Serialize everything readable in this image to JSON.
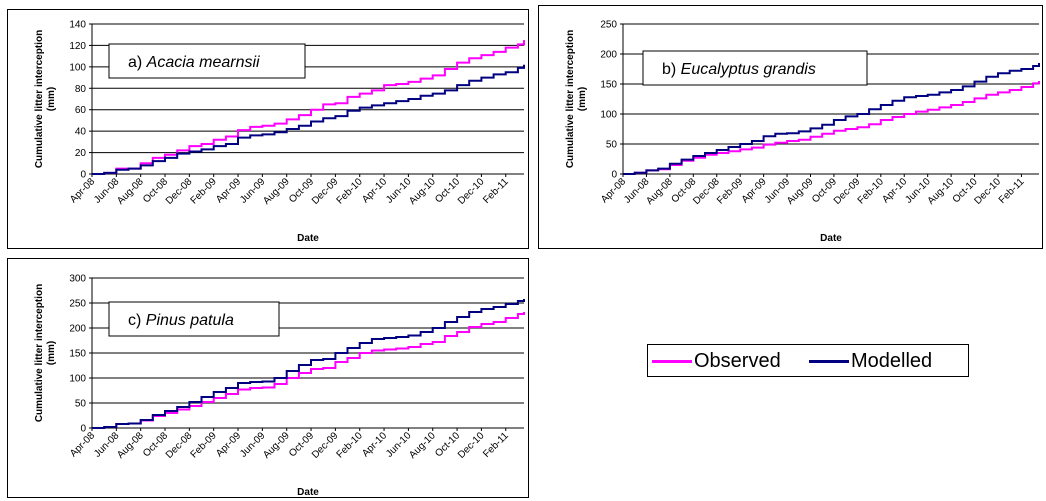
{
  "colors": {
    "observed": "#ff00ff",
    "modelled": "#000080"
  },
  "legend": {
    "position": "right",
    "items": [
      {
        "name": "Observed",
        "color": "#ff00ff"
      },
      {
        "name": "Modelled",
        "color": "#000080"
      }
    ]
  },
  "chart_data": [
    {
      "type": "line",
      "panel_label_prefix": "a)",
      "panel_label_species": "Acacia mearnsii",
      "xlabel": "Date",
      "ylabel_line1": "Cumulative litter interception",
      "ylabel_line2": "(mm)",
      "ylim": [
        0,
        140
      ],
      "yticks": [
        0,
        20,
        40,
        60,
        80,
        100,
        120,
        140
      ],
      "grid": true,
      "x_tick_labels": [
        "Apr-08",
        "Jun-08",
        "Aug-08",
        "Oct-08",
        "Dec-08",
        "Feb-09",
        "Apr-09",
        "Jun-09",
        "Aug-09",
        "Oct-09",
        "Dec-09",
        "Feb-10",
        "Apr-10",
        "Jun-10",
        "Aug-10",
        "Oct-10",
        "Dec-10",
        "Feb-11"
      ],
      "x_range_months": [
        0,
        35.5
      ],
      "series": [
        {
          "name": "Observed",
          "color": "#ff00ff",
          "x": [
            0,
            1,
            2,
            3,
            4,
            5,
            6,
            7,
            8,
            9,
            10,
            11,
            12,
            13,
            14,
            15,
            16,
            17,
            18,
            19,
            20,
            21,
            22,
            23,
            24,
            25,
            26,
            27,
            28,
            29,
            30,
            31,
            32,
            33,
            34,
            35,
            35.5
          ],
          "y": [
            0,
            1,
            5,
            5,
            10,
            15,
            18,
            22,
            26,
            28,
            32,
            35,
            41,
            44,
            45,
            47,
            51,
            55,
            60,
            65,
            66,
            72,
            75,
            78,
            83,
            84,
            86,
            89,
            92,
            98,
            104,
            108,
            111,
            114,
            118,
            121,
            125
          ]
        },
        {
          "name": "Modelled",
          "color": "#000080",
          "x": [
            0,
            1,
            2,
            3,
            4,
            5,
            6,
            7,
            8,
            9,
            10,
            11,
            12,
            13,
            14,
            15,
            16,
            17,
            18,
            19,
            20,
            21,
            22,
            23,
            24,
            25,
            26,
            27,
            28,
            29,
            30,
            31,
            32,
            33,
            34,
            35,
            35.5
          ],
          "y": [
            0,
            1,
            4,
            5,
            8,
            12,
            15,
            19,
            21,
            23,
            26,
            28,
            34,
            36,
            37,
            39,
            42,
            45,
            49,
            52,
            54,
            59,
            62,
            64,
            66,
            68,
            70,
            73,
            75,
            78,
            83,
            87,
            90,
            93,
            95,
            99,
            102
          ]
        }
      ]
    },
    {
      "type": "line",
      "panel_label_prefix": "b)",
      "panel_label_species": "Eucalyptus grandis",
      "xlabel": "Date",
      "ylabel_line1": "Cumulative litter interception",
      "ylabel_line2": "(mm)",
      "ylim": [
        0,
        250
      ],
      "yticks": [
        0,
        50,
        100,
        150,
        200,
        250
      ],
      "grid": true,
      "x_tick_labels": [
        "Apr-08",
        "Jun-08",
        "Aug-08",
        "Oct-08",
        "Dec-08",
        "Feb-09",
        "Apr-09",
        "Jun-09",
        "Aug-09",
        "Oct-09",
        "Dec-09",
        "Feb-10",
        "Apr-10",
        "Jun-10",
        "Aug-10",
        "Oct-10",
        "Dec-10",
        "Feb-11"
      ],
      "x_range_months": [
        0,
        35.5
      ],
      "series": [
        {
          "name": "Observed",
          "color": "#ff00ff",
          "x": [
            0,
            1,
            2,
            3,
            4,
            5,
            6,
            7,
            8,
            9,
            10,
            11,
            12,
            13,
            14,
            15,
            16,
            17,
            18,
            19,
            20,
            21,
            22,
            23,
            24,
            25,
            26,
            27,
            28,
            29,
            30,
            31,
            32,
            33,
            34,
            35,
            35.5
          ],
          "y": [
            0,
            2,
            6,
            8,
            15,
            22,
            27,
            32,
            35,
            38,
            41,
            44,
            49,
            52,
            55,
            57,
            62,
            67,
            72,
            75,
            78,
            83,
            90,
            95,
            100,
            104,
            107,
            111,
            115,
            120,
            126,
            132,
            136,
            140,
            145,
            151,
            155
          ]
        },
        {
          "name": "Modelled",
          "color": "#000080",
          "x": [
            0,
            1,
            2,
            3,
            4,
            5,
            6,
            7,
            8,
            9,
            10,
            11,
            12,
            13,
            14,
            15,
            16,
            17,
            18,
            19,
            20,
            21,
            22,
            23,
            24,
            25,
            26,
            27,
            28,
            29,
            30,
            31,
            32,
            33,
            34,
            35,
            35.5
          ],
          "y": [
            0,
            2,
            6,
            9,
            17,
            24,
            30,
            35,
            40,
            45,
            50,
            55,
            63,
            67,
            68,
            71,
            76,
            82,
            90,
            96,
            100,
            108,
            115,
            122,
            128,
            130,
            132,
            136,
            140,
            146,
            154,
            162,
            168,
            172,
            175,
            180,
            185
          ]
        }
      ]
    },
    {
      "type": "line",
      "panel_label_prefix": "c)",
      "panel_label_species": "Pinus patula",
      "xlabel": "Date",
      "ylabel_line1": "Cumulative litter interception",
      "ylabel_line2": "(mm)",
      "ylim": [
        0,
        300
      ],
      "yticks": [
        0,
        50,
        100,
        150,
        200,
        250,
        300
      ],
      "grid": true,
      "x_tick_labels": [
        "Apr-08",
        "Jun-08",
        "Aug-08",
        "Oct-08",
        "Dec-08",
        "Feb-09",
        "Apr-09",
        "Jun-09",
        "Aug-09",
        "Oct-09",
        "Dec-09",
        "Feb-10",
        "Apr-10",
        "Jun-10",
        "Aug-10",
        "Oct-10",
        "Dec-10",
        "Feb-11"
      ],
      "x_range_months": [
        0,
        35.5
      ],
      "series": [
        {
          "name": "Observed",
          "color": "#ff00ff",
          "x": [
            0,
            1,
            2,
            3,
            4,
            5,
            6,
            7,
            8,
            9,
            10,
            11,
            12,
            13,
            14,
            15,
            16,
            17,
            18,
            19,
            20,
            21,
            22,
            23,
            24,
            25,
            26,
            27,
            28,
            29,
            30,
            31,
            32,
            33,
            34,
            35,
            35.5
          ],
          "y": [
            0,
            2,
            8,
            9,
            15,
            24,
            30,
            37,
            44,
            52,
            60,
            68,
            77,
            80,
            81,
            88,
            100,
            110,
            118,
            120,
            132,
            140,
            150,
            155,
            157,
            159,
            162,
            168,
            172,
            184,
            192,
            202,
            208,
            212,
            220,
            228,
            232
          ]
        },
        {
          "name": "Modelled",
          "color": "#000080",
          "x": [
            0,
            1,
            2,
            3,
            4,
            5,
            6,
            7,
            8,
            9,
            10,
            11,
            12,
            13,
            14,
            15,
            16,
            17,
            18,
            19,
            20,
            21,
            22,
            23,
            24,
            25,
            26,
            27,
            28,
            29,
            30,
            31,
            32,
            33,
            34,
            35,
            35.5
          ],
          "y": [
            0,
            2,
            8,
            9,
            16,
            26,
            34,
            42,
            52,
            62,
            72,
            80,
            90,
            92,
            93,
            100,
            114,
            126,
            136,
            138,
            150,
            160,
            170,
            178,
            180,
            182,
            185,
            192,
            200,
            212,
            222,
            232,
            238,
            242,
            248,
            254,
            258
          ]
        }
      ]
    }
  ]
}
